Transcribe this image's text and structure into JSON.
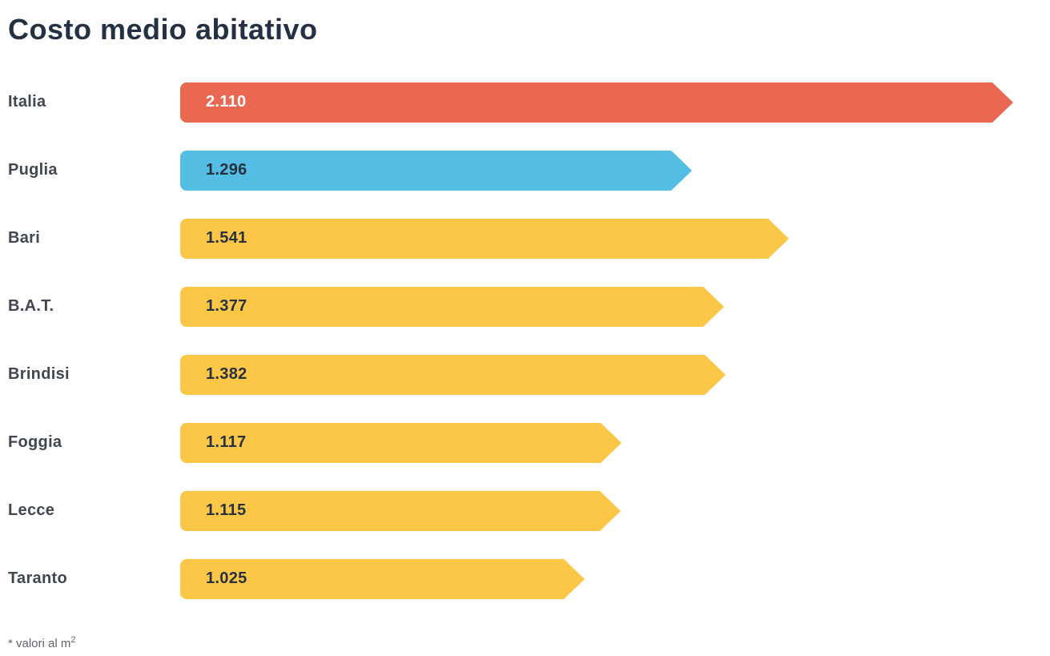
{
  "title": "Costo medio abitativo",
  "footnote": {
    "text": "* valori al m",
    "sup": "2"
  },
  "colors": {
    "title": "#243142",
    "category_label": "#40474E",
    "highlight_red": "#EA6852",
    "highlight_blue": "#53BDE4",
    "default_yellow": "#FCC747",
    "value_on_dark": "#FFFFFF",
    "value_on_light": "#27313F",
    "footnote": "#5F6368",
    "bottom_strip": "#6FA0C7"
  },
  "chart_data": {
    "type": "bar",
    "orientation": "horizontal",
    "title": "Costo medio abitativo",
    "xlabel": "",
    "ylabel": "",
    "xlim": [
      0,
      2110
    ],
    "grid": false,
    "legend": false,
    "note": "* valori al m2",
    "categories": [
      "Italia",
      "Puglia",
      "Bari",
      "B.A.T.",
      "Brindisi",
      "Foggia",
      "Lecce",
      "Taranto"
    ],
    "values": [
      2110,
      1296,
      1541,
      1377,
      1382,
      1117,
      1115,
      1025
    ],
    "value_labels": [
      "2.110",
      "1.296",
      "1.541",
      "1.377",
      "1.382",
      "1.117",
      "1.115",
      "1.025"
    ],
    "rows": [
      {
        "label": "Italia",
        "value": 2110,
        "display": "2.110",
        "bar_color": "#EA6852",
        "text_color": "#FFFFFF"
      },
      {
        "label": "Puglia",
        "value": 1296,
        "display": "1.296",
        "bar_color": "#53BDE4",
        "text_color": "#27313F"
      },
      {
        "label": "Bari",
        "value": 1541,
        "display": "1.541",
        "bar_color": "#FCC747",
        "text_color": "#27313F"
      },
      {
        "label": "B.A.T.",
        "value": 1377,
        "display": "1.377",
        "bar_color": "#FCC747",
        "text_color": "#27313F"
      },
      {
        "label": "Brindisi",
        "value": 1382,
        "display": "1.382",
        "bar_color": "#FCC747",
        "text_color": "#27313F"
      },
      {
        "label": "Foggia",
        "value": 1117,
        "display": "1.117",
        "bar_color": "#FCC747",
        "text_color": "#27313F"
      },
      {
        "label": "Lecce",
        "value": 1115,
        "display": "1.115",
        "bar_color": "#FCC747",
        "text_color": "#27313F"
      },
      {
        "label": "Taranto",
        "value": 1025,
        "display": "1.025",
        "bar_color": "#FCC747",
        "text_color": "#27313F"
      }
    ]
  }
}
